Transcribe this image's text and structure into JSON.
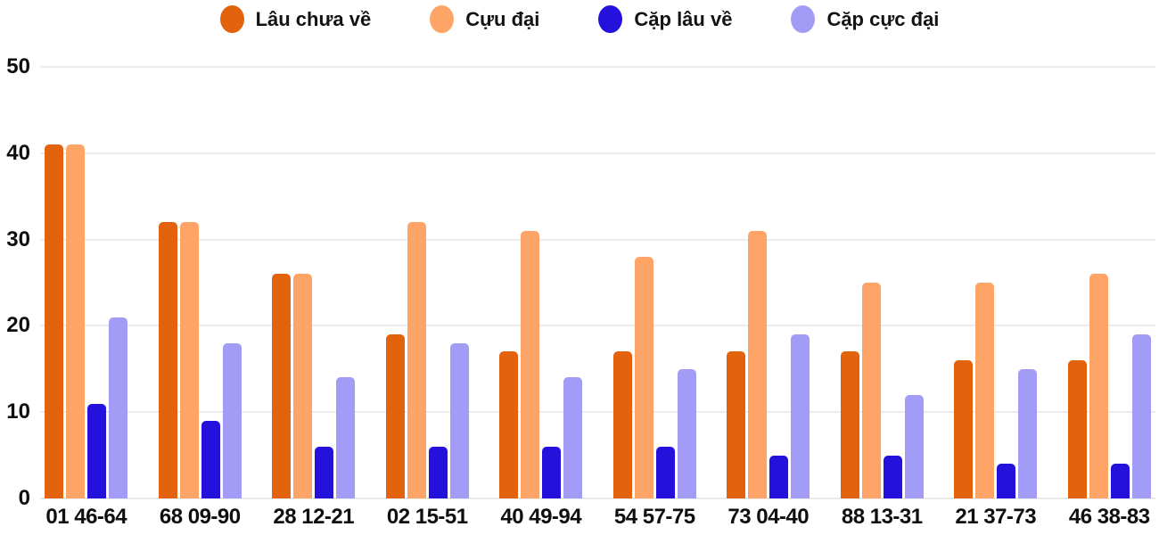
{
  "chart_data": {
    "type": "bar",
    "title": "",
    "categories": [
      "01 46-64",
      "68 09-90",
      "28 12-21",
      "02 15-51",
      "40 49-94",
      "54 57-75",
      "73 04-40",
      "88 13-31",
      "21 37-73",
      "46 38-83"
    ],
    "series": [
      {
        "name": "Lâu chưa về",
        "color": "#E2620E",
        "values": [
          41,
          32,
          26,
          19,
          17,
          17,
          17,
          17,
          16,
          16
        ]
      },
      {
        "name": "Cựu đại",
        "color": "#FFA467",
        "values": [
          41,
          32,
          26,
          32,
          31,
          28,
          31,
          25,
          25,
          26
        ]
      },
      {
        "name": "Cặp lâu về",
        "color": "#2412DC",
        "values": [
          11,
          9,
          6,
          6,
          6,
          6,
          5,
          5,
          4,
          4
        ]
      },
      {
        "name": "Cặp cực đại",
        "color": "#A39CF6",
        "values": [
          21,
          18,
          14,
          18,
          14,
          15,
          19,
          12,
          15,
          19
        ]
      }
    ],
    "xlabel": "",
    "ylabel": "",
    "ylim": [
      0,
      50
    ],
    "yticks": [
      0,
      10,
      20,
      30,
      40,
      50
    ],
    "grid": "horizontal",
    "legend_position": "top",
    "colors": {
      "grid": "#ECECEC",
      "baseline": "#E9E9E9",
      "text": "#131313",
      "background": "#FFFFFF"
    }
  }
}
